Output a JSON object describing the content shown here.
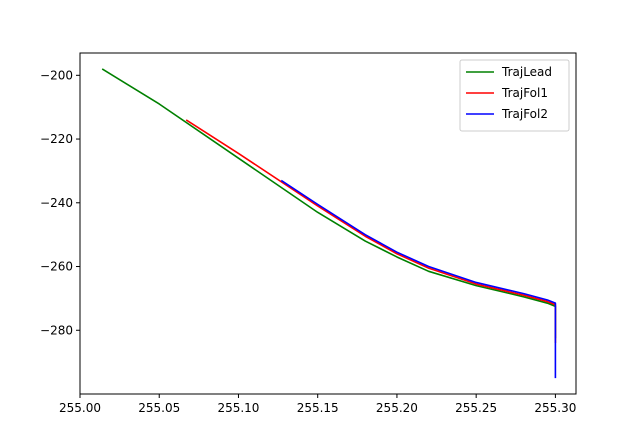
{
  "chart_data": {
    "type": "line",
    "title": "",
    "xlabel": "",
    "ylabel": "",
    "xlim": [
      255.0,
      255.313
    ],
    "ylim": [
      -300,
      -193
    ],
    "xticks": [
      255.0,
      255.05,
      255.1,
      255.15,
      255.2,
      255.25,
      255.3
    ],
    "xtick_labels": [
      "255.00",
      "255.05",
      "255.10",
      "255.15",
      "255.20",
      "255.25",
      "255.30"
    ],
    "yticks": [
      -280,
      -260,
      -240,
      -220,
      -200
    ],
    "ytick_labels": [
      "−280",
      "−260",
      "−240",
      "−220",
      "−200"
    ],
    "grid": false,
    "legend_position": "top-right",
    "series": [
      {
        "name": "TrajLead",
        "color": "#008000",
        "x": [
          255.014,
          255.05,
          255.1,
          255.15,
          255.18,
          255.2,
          255.22,
          255.25,
          255.28,
          255.295,
          255.3,
          255.3
        ],
        "y": [
          -198.0,
          -209.0,
          -226.0,
          -243.0,
          -252.0,
          -257.0,
          -261.5,
          -266.0,
          -269.5,
          -271.5,
          -272.5,
          -282.5
        ]
      },
      {
        "name": "TrajFol1",
        "color": "#ff0000",
        "x": [
          255.067,
          255.1,
          255.15,
          255.18,
          255.2,
          255.22,
          255.25,
          255.28,
          255.295,
          255.3,
          255.3
        ],
        "y": [
          -214.0,
          -224.5,
          -241.0,
          -250.5,
          -256.0,
          -260.5,
          -265.5,
          -269.0,
          -271.0,
          -272.0,
          -284.0
        ]
      },
      {
        "name": "TrajFol2",
        "color": "#0000ff",
        "x": [
          255.127,
          255.15,
          255.18,
          255.2,
          255.22,
          255.25,
          255.28,
          255.295,
          255.3,
          255.3
        ],
        "y": [
          -233.0,
          -240.5,
          -250.0,
          -255.5,
          -260.0,
          -265.0,
          -268.5,
          -270.5,
          -271.5,
          -295.0
        ]
      }
    ]
  }
}
